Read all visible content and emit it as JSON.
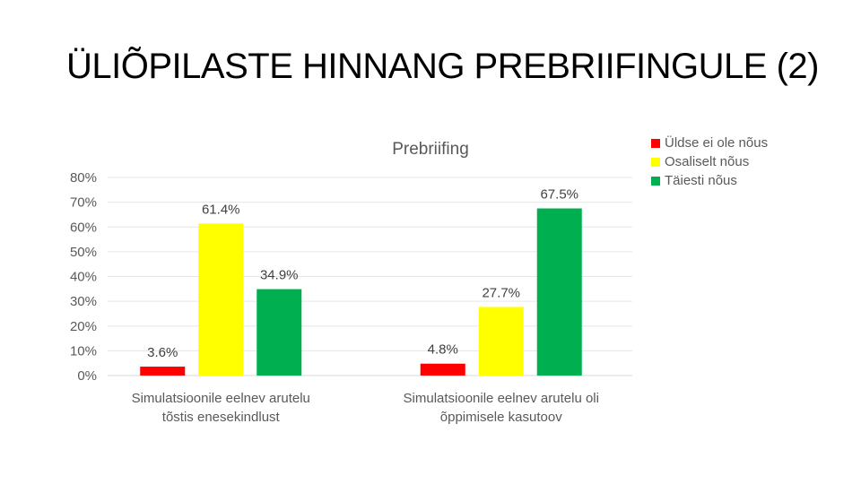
{
  "slide": {
    "title": "ÜLIÕPILASTE HINNANG PREBRIIFINGULE (2)"
  },
  "chart_data": {
    "type": "bar",
    "title": "Prebriifing",
    "xlabel": "",
    "ylabel": "",
    "ylim": [
      0,
      80
    ],
    "yticks": [
      "80%",
      "70%",
      "60%",
      "50%",
      "40%",
      "30%",
      "20%",
      "10%",
      "0%"
    ],
    "grid": true,
    "legend_position": "top-right",
    "categories": [
      "Simulatsioonile eelnev arutelu tõstis enesekindlust",
      "Simulatsioonile eelnev arutelu oli õppimisele kasutoov"
    ],
    "category_lines": [
      [
        "Simulatsioonile eelnev arutelu",
        "tõstis enesekindlust"
      ],
      [
        "Simulatsioonile eelnev arutelu oli",
        "õppimisele kasutoov"
      ]
    ],
    "series": [
      {
        "name": "Üldse ei ole nõus",
        "color": "#ff0000",
        "values": [
          3.6,
          4.8
        ],
        "labels": [
          "3.6%",
          "4.8%"
        ]
      },
      {
        "name": "Osaliselt nõus",
        "color": "#ffff00",
        "values": [
          61.4,
          27.7
        ],
        "labels": [
          "61.4%",
          "27.7%"
        ]
      },
      {
        "name": "Täiesti nõus",
        "color": "#00b050",
        "values": [
          34.9,
          67.5
        ],
        "labels": [
          "34.9%",
          "67.5%"
        ]
      }
    ]
  }
}
